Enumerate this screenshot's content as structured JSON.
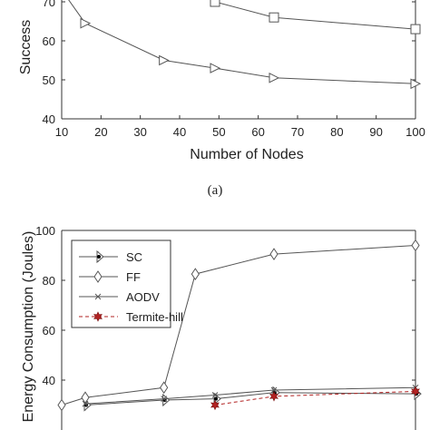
{
  "chart_data": [
    {
      "type": "line",
      "title": "",
      "xlabel": "Number of Nodes",
      "ylabel": "Success",
      "xlim": [
        10,
        100
      ],
      "ylim": [
        40,
        75
      ],
      "xticks": [
        10,
        20,
        30,
        40,
        50,
        60,
        70,
        80,
        90,
        100
      ],
      "yticks": [
        40,
        50,
        60,
        70
      ],
      "grid": false,
      "caption": "(a)",
      "series": [
        {
          "marker": "square",
          "x": [
            49,
            64,
            100
          ],
          "y": [
            70,
            66,
            63
          ],
          "color": "#555555"
        },
        {
          "marker": "triangle-right",
          "x": [
            10,
            16,
            36,
            49,
            64,
            100
          ],
          "y": [
            73,
            64.5,
            55,
            53,
            50.5,
            49
          ],
          "color": "#555555"
        }
      ]
    },
    {
      "type": "line",
      "title": "",
      "xlabel": "",
      "ylabel": "Energy Consumption (Joules)",
      "xlim": [
        10,
        100
      ],
      "ylim": [
        30,
        100
      ],
      "yticks": [
        40,
        60,
        80,
        100
      ],
      "grid": false,
      "legend": "top-left",
      "series": [
        {
          "name": "SC",
          "marker": "bar-dot",
          "x": [
            16,
            36,
            49,
            64,
            100
          ],
          "y": [
            30,
            32,
            32.5,
            35,
            34.5
          ],
          "color": "#555555"
        },
        {
          "name": "FF",
          "marker": "diamond",
          "x": [
            10,
            16,
            36,
            44,
            64,
            100
          ],
          "y": [
            30,
            33,
            37,
            82.5,
            90.5,
            94
          ],
          "color": "#555555"
        },
        {
          "name": "AODV",
          "marker": "x",
          "x": [
            16,
            36,
            49,
            64,
            100
          ],
          "y": [
            30.5,
            32.5,
            34,
            36,
            37
          ],
          "color": "#555555"
        },
        {
          "name": "Termite-hill",
          "marker": "star",
          "x": [
            49,
            64,
            100
          ],
          "y": [
            30,
            33.5,
            35.5
          ],
          "color": "#b22222",
          "dashed": true
        }
      ]
    }
  ]
}
